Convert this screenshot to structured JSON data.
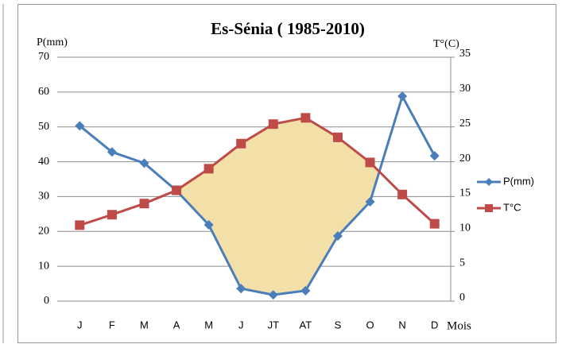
{
  "chart_data": {
    "type": "line",
    "title": "Es-Sénia ( 1985-2010)",
    "ylabel": "P(mm)",
    "y2label": "T°(C)",
    "xlabel": "Mois",
    "categories": [
      "J",
      "F",
      "M",
      "A",
      "M",
      "J",
      "JT",
      "AT",
      "S",
      "O",
      "N",
      "D"
    ],
    "series": [
      {
        "name": "P(mm)",
        "color": "#4a7ebb",
        "marker": "diamond",
        "values": [
          50.3,
          42.8,
          39.6,
          31.7,
          21.9,
          3.6,
          1.8,
          3,
          18.7,
          28.5,
          58.8,
          41.7
        ]
      },
      {
        "name": "T°C",
        "color": "#be4b48",
        "marker": "square",
        "axis": "y2",
        "values": [
          10.9,
          12.4,
          14,
          15.9,
          19,
          22.6,
          25.4,
          26.3,
          23.5,
          19.9,
          15.3,
          11.1
        ]
      }
    ],
    "ylim": [
      0,
      70
    ],
    "yticks": [
      0,
      10,
      20,
      30,
      40,
      50,
      60,
      70
    ],
    "y2lim": [
      0,
      35
    ],
    "y2ticks": [
      0,
      5,
      10,
      15,
      20,
      25,
      30,
      35
    ],
    "grid": true,
    "legend": "right",
    "fill_color": "#f2e0a8"
  }
}
